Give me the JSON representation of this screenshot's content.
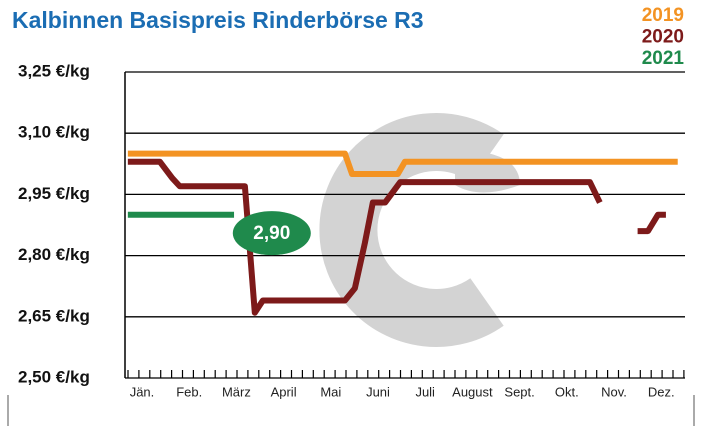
{
  "chart_data": {
    "type": "line",
    "title": "Kalbinnen Basispreis Rinderbörse R3",
    "categories": [
      "Jän.",
      "Feb.",
      "März",
      "April",
      "Mai",
      "Juni",
      "Juli",
      "August",
      "Sept.",
      "Okt.",
      "Nov.",
      "Dez."
    ],
    "xlim": [
      0,
      12
    ],
    "ylim": [
      2.5,
      3.25
    ],
    "yticks": [
      {
        "value": 2.5,
        "label": "2,50 €/kg"
      },
      {
        "value": 2.65,
        "label": "2,65 €/kg"
      },
      {
        "value": 2.8,
        "label": "2,80 €/kg"
      },
      {
        "value": 2.95,
        "label": "2,95 €/kg"
      },
      {
        "value": 3.1,
        "label": "3,10 €/kg"
      },
      {
        "value": 3.25,
        "label": "3,25 €/kg"
      }
    ],
    "grid": true,
    "legend": "top-right",
    "series": [
      {
        "name": "2019",
        "color": "#f39323",
        "x": [
          0.2,
          4.8,
          4.95,
          5.92,
          6.07,
          11.85
        ],
        "values": [
          3.05,
          3.05,
          3.0,
          3.0,
          3.03,
          3.03
        ]
      },
      {
        "name": "2020",
        "color": "#7d1a1a",
        "x": [
          0.2,
          0.88,
          1.14,
          1.3,
          2.68,
          2.89,
          3.06,
          4.8,
          5.01,
          5.22,
          5.39,
          5.65,
          5.97,
          9.99,
          10.2,
          null,
          11.0,
          11.22,
          11.43,
          11.6
        ],
        "values": [
          3.03,
          3.03,
          2.99,
          2.97,
          2.97,
          2.66,
          2.69,
          2.69,
          2.72,
          2.83,
          2.93,
          2.93,
          2.98,
          2.98,
          2.93,
          null,
          2.86,
          2.86,
          2.9,
          2.9
        ]
      },
      {
        "name": "2021",
        "color": "#1f8a4c",
        "x": [
          0.2,
          2.45
        ],
        "values": [
          2.9,
          2.9
        ]
      }
    ],
    "annotations": [
      {
        "text": "2,90",
        "x": 3.25,
        "y": 2.855,
        "color": "#1f8a4c"
      }
    ]
  }
}
